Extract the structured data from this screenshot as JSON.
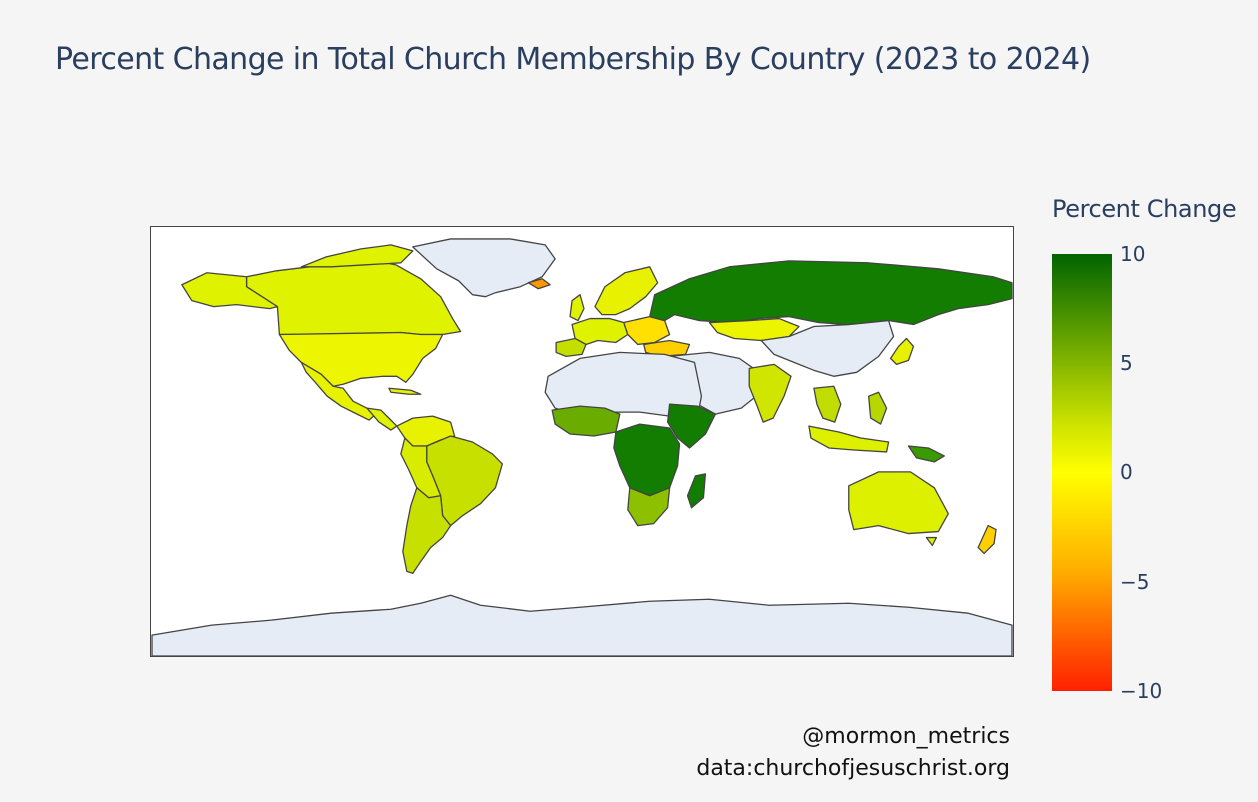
{
  "title": "Percent Change in Total Church Membership By Country (2023 to 2024)",
  "colorbar": {
    "title": "Percent Change",
    "ticks": [
      "10",
      "5",
      "0",
      "−5",
      "−10"
    ],
    "tick_values": [
      10,
      5,
      0,
      -5,
      -10
    ],
    "range": [
      -10,
      10
    ],
    "colors": [
      "#ff2000",
      "#ffb000",
      "#ffff00",
      "#c8e000",
      "#006400"
    ]
  },
  "credits": {
    "handle": "@mormon_metrics",
    "source": "data:churchofjesuschrist.org"
  },
  "map": {
    "projection": "equirectangular",
    "land_nodata_color": "#e5ecf6",
    "ocean_color": "#ffffff",
    "border_color": "#444444"
  }
}
